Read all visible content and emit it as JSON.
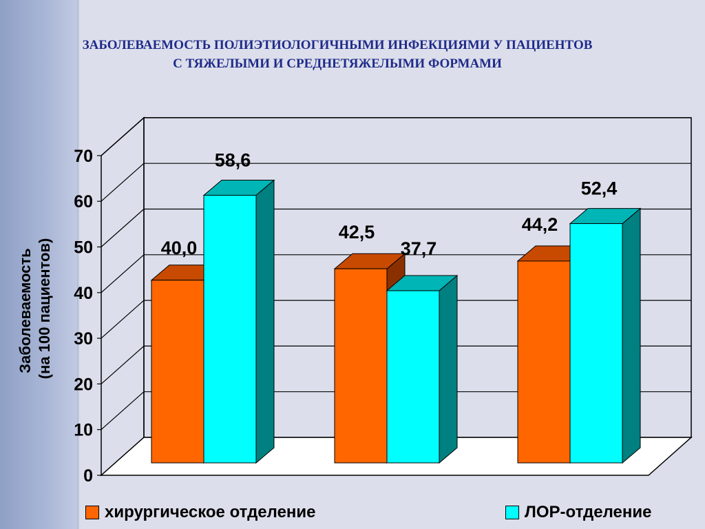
{
  "title": {
    "line1": "ЗАБОЛЕВАЕМОСТЬ ПОЛИЭТИОЛОГИЧНЫМИ ИНФЕКЦИЯМИ У ПАЦИЕНТОВ",
    "line2": "С ТЯЖЕЛЫМИ И СРЕДНЕТЯЖЕЛЫМИ ФОРМАМИ"
  },
  "colors": {
    "series1_front": "#ff6600",
    "series1_top": "#c84a00",
    "series1_side": "#8a3000",
    "series2_front": "#00ffff",
    "series2_top": "#00b5b5",
    "series2_side": "#008080"
  },
  "chart_data": {
    "type": "bar",
    "categories": [
      "",
      "",
      ""
    ],
    "series": [
      {
        "name": "хирургическое отделение",
        "values": [
          40.0,
          42.5,
          44.2
        ],
        "labels": [
          "40,0",
          "42,5",
          "44,2"
        ]
      },
      {
        "name": "ЛОР-отделение",
        "values": [
          58.6,
          37.7,
          52.4
        ],
        "labels": [
          "58,6",
          "37,7",
          "52,4"
        ]
      }
    ],
    "ylabel_line1": "Заболеваемость",
    "ylabel_line2": "(на 100 пациентов)",
    "ylim": [
      0,
      70
    ],
    "yticks": [
      0,
      10,
      20,
      30,
      40,
      50,
      60,
      70
    ],
    "grid": true,
    "legend": "bottom",
    "style": "3d-clustered"
  }
}
